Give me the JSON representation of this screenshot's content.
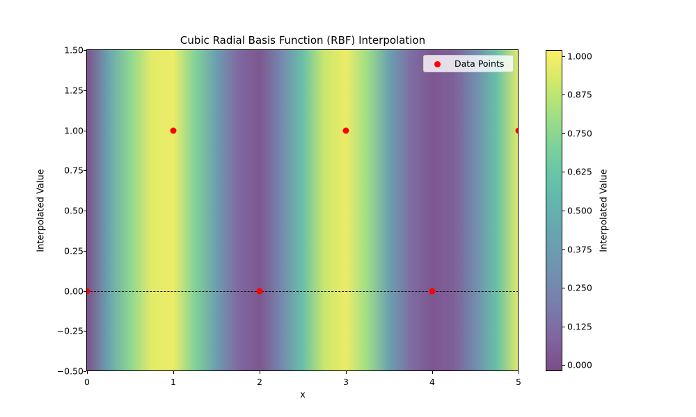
{
  "chart_data": {
    "type": "heatmap",
    "title": "Cubic Radial Basis Function (RBF) Interpolation",
    "xlabel": "x",
    "ylabel": "Interpolated Value",
    "xlim": [
      0,
      5
    ],
    "ylim": [
      -0.5,
      1.5
    ],
    "x_ticks": [
      "0",
      "1",
      "2",
      "3",
      "4",
      "5"
    ],
    "y_ticks": [
      "1.50",
      "1.25",
      "1.00",
      "0.75",
      "0.50",
      "0.25",
      "0.00",
      "−0.25",
      "−0.50"
    ],
    "y_tick_values": [
      1.5,
      1.25,
      1.0,
      0.75,
      0.5,
      0.25,
      0.0,
      -0.25,
      -0.5
    ],
    "colormap": "viridis",
    "alpha": 0.7,
    "colorbar": {
      "label": "Interpolated Value",
      "range": [
        -0.02,
        1.02
      ],
      "ticks": [
        "1.000",
        "0.875",
        "0.750",
        "0.625",
        "0.500",
        "0.375",
        "0.250",
        "0.125",
        "0.000"
      ],
      "tick_values": [
        1.0,
        0.875,
        0.75,
        0.625,
        0.5,
        0.375,
        0.25,
        0.125,
        0.0
      ]
    },
    "interpolated_profile": {
      "x": [
        0,
        0.25,
        0.5,
        0.75,
        1.0,
        1.25,
        1.5,
        1.75,
        2.0,
        2.25,
        2.5,
        2.75,
        3.0,
        3.25,
        3.5,
        3.75,
        4.0,
        4.25,
        4.5,
        4.75,
        5.0
      ],
      "value": [
        0.0,
        0.42,
        0.75,
        0.96,
        0.98,
        0.72,
        0.38,
        0.1,
        0.02,
        0.25,
        0.6,
        0.9,
        0.98,
        0.8,
        0.4,
        0.12,
        0.02,
        0.06,
        0.28,
        0.6,
        0.95
      ]
    },
    "series": [
      {
        "name": "Data Points",
        "type": "scatter",
        "color": "#ff0000",
        "x": [
          0,
          1,
          2,
          3,
          4,
          5
        ],
        "y": [
          0,
          1,
          0,
          1,
          0,
          1
        ]
      }
    ],
    "reference_lines": [
      {
        "y": 0,
        "style": "dashed",
        "color": "#000000"
      }
    ],
    "legend": {
      "position": "upper right",
      "entries": [
        "Data Points"
      ]
    },
    "grid": false
  }
}
